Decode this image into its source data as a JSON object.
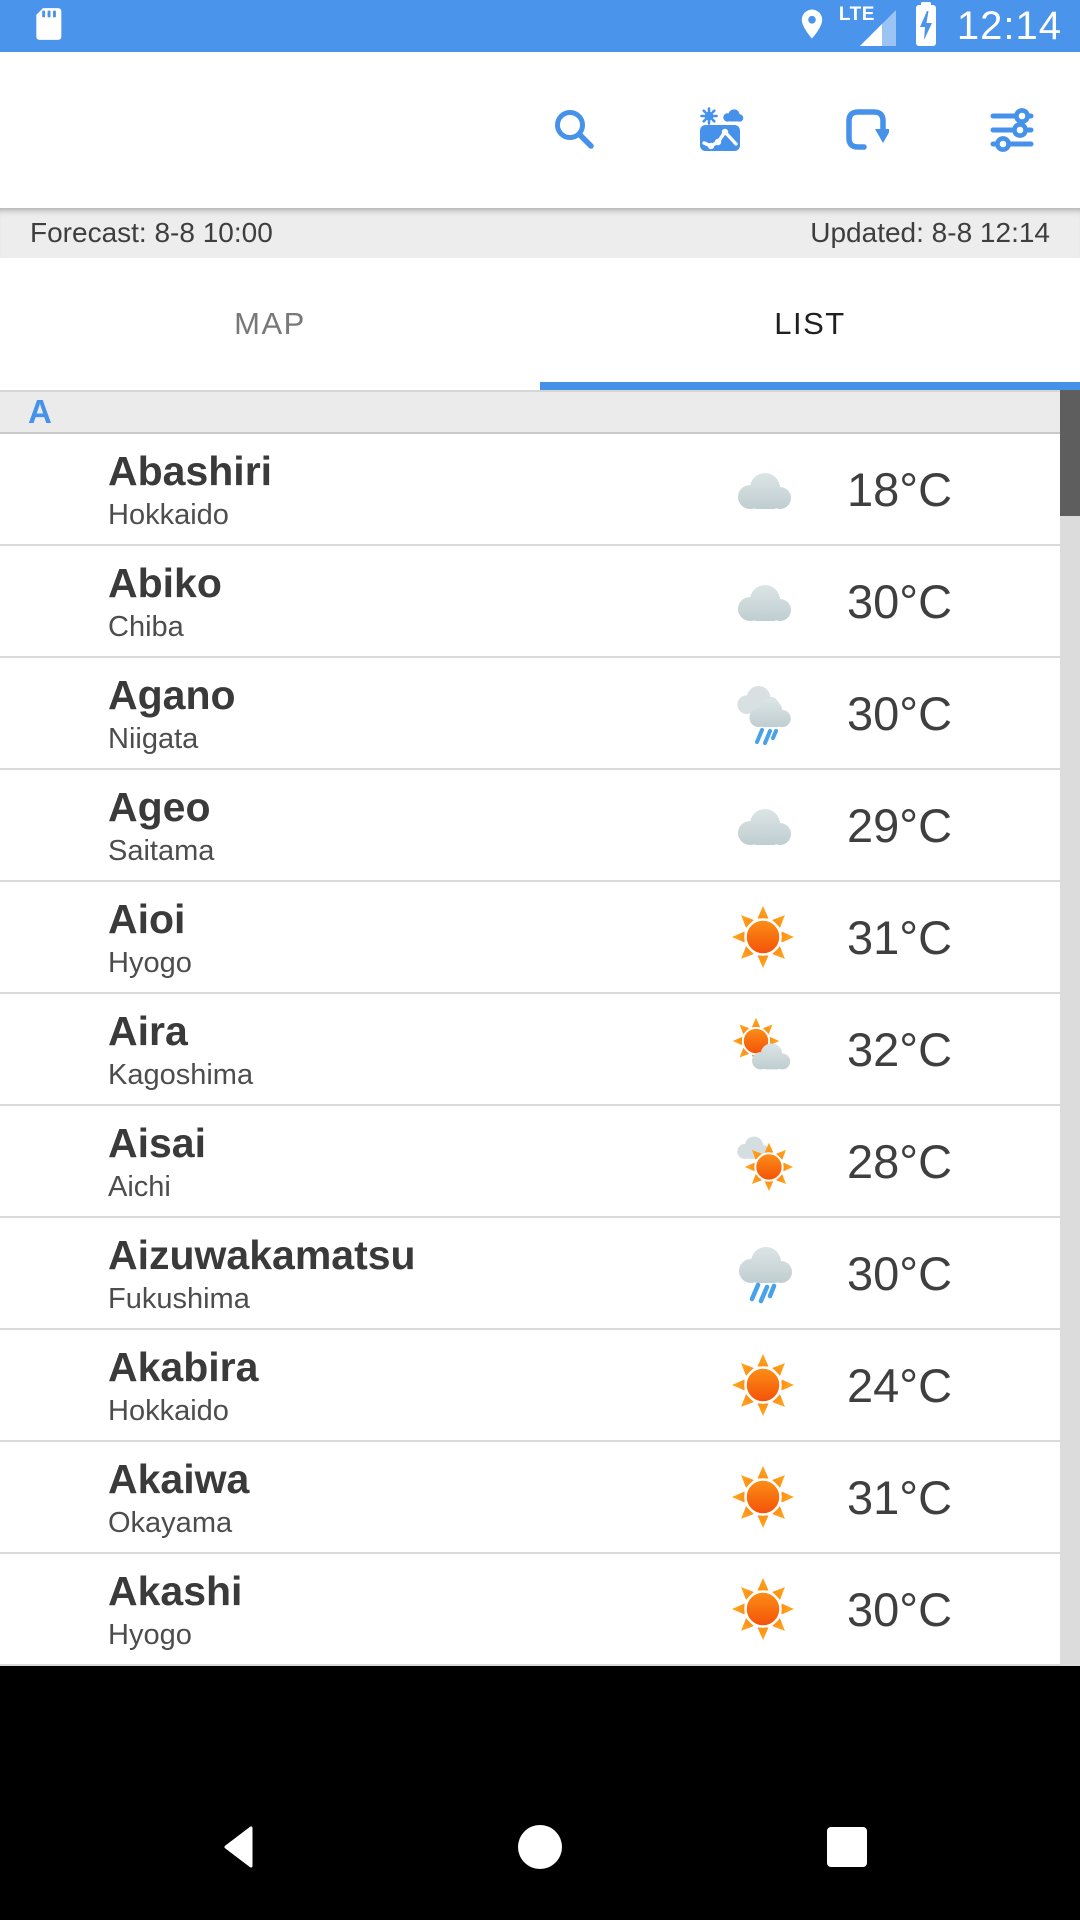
{
  "colors": {
    "accent_blue": "#4692ea",
    "status_bar_blue": "#4a94ec",
    "sun_orange_top": "#ffa21c",
    "sun_red_bottom": "#f13e03",
    "cloud_gray": "#c6d2d4",
    "rain_blue": "#47a2e9",
    "scroll_handle": "#5e5e5e"
  },
  "status_bar": {
    "time": "12:14",
    "network_label": "LTE",
    "icons": [
      "sd-card-icon",
      "location-icon",
      "signal-icon",
      "battery-charging-icon"
    ]
  },
  "toolbar": {
    "icons": [
      "search-icon",
      "weather-map-icon",
      "refresh-icon",
      "tune-icon"
    ]
  },
  "info_bar": {
    "forecast_label": "Forecast: 8-8 10:00",
    "updated_label": "Updated: 8-8 12:14"
  },
  "tabs": {
    "map_label": "MAP",
    "list_label": "LIST",
    "active": "LIST"
  },
  "section_header": "A",
  "cities": [
    {
      "name": "Abashiri",
      "prefecture": "Hokkaido",
      "temperature": "18°C",
      "condition": "cloudy"
    },
    {
      "name": "Abiko",
      "prefecture": "Chiba",
      "temperature": "30°C",
      "condition": "cloudy"
    },
    {
      "name": "Agano",
      "prefecture": "Niigata",
      "temperature": "30°C",
      "condition": "rain-double-cloud"
    },
    {
      "name": "Ageo",
      "prefecture": "Saitama",
      "temperature": "29°C",
      "condition": "cloudy"
    },
    {
      "name": "Aioi",
      "prefecture": "Hyogo",
      "temperature": "31°C",
      "condition": "sunny"
    },
    {
      "name": "Aira",
      "prefecture": "Kagoshima",
      "temperature": "32°C",
      "condition": "sun-with-cloud"
    },
    {
      "name": "Aisai",
      "prefecture": "Aichi",
      "temperature": "28°C",
      "condition": "cloud-with-sun"
    },
    {
      "name": "Aizuwakamatsu",
      "prefecture": "Fukushima",
      "temperature": "30°C",
      "condition": "rain"
    },
    {
      "name": "Akabira",
      "prefecture": "Hokkaido",
      "temperature": "24°C",
      "condition": "sunny"
    },
    {
      "name": "Akaiwa",
      "prefecture": "Okayama",
      "temperature": "31°C",
      "condition": "sunny"
    },
    {
      "name": "Akashi",
      "prefecture": "Hyogo",
      "temperature": "30°C",
      "condition": "sunny"
    }
  ],
  "navigation": {
    "buttons": [
      "back",
      "home",
      "recents"
    ]
  }
}
